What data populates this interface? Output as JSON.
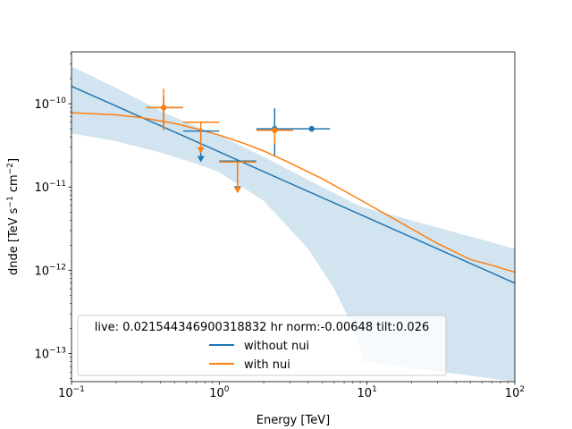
{
  "chart_data": {
    "type": "line",
    "xscale": "log",
    "yscale": "log",
    "xlabel": "Energy [TeV]",
    "ylabel_parts": {
      "prefix": "dnde [TeV s",
      "exp1": "−1",
      "mid": " cm",
      "exp2": "−2",
      "suffix": "]"
    },
    "xlim": [
      0.1,
      100
    ],
    "ylim": [
      4.6e-14,
      4.2e-10
    ],
    "x_ticks": [
      {
        "value": 0.1,
        "base": "10",
        "exp": "−1"
      },
      {
        "value": 1,
        "base": "10",
        "exp": "0"
      },
      {
        "value": 10,
        "base": "10",
        "exp": "1"
      },
      {
        "value": 100,
        "base": "10",
        "exp": "2"
      }
    ],
    "y_ticks": [
      {
        "value": 1e-13,
        "base": "10",
        "exp": "−13"
      },
      {
        "value": 1e-12,
        "base": "10",
        "exp": "−12"
      },
      {
        "value": 1e-11,
        "base": "10",
        "exp": "−11"
      },
      {
        "value": 1e-10,
        "base": "10",
        "exp": "−10"
      }
    ],
    "band": {
      "color": "#1f77b4",
      "opacity": 0.2,
      "x": [
        0.1,
        0.2,
        0.4,
        0.7,
        1.0,
        2.0,
        4.0,
        6.0,
        8.0,
        9.5,
        100
      ],
      "upper": [
        2.8e-10,
        1.55e-10,
        8.2e-11,
        5.3e-11,
        4.2e-11,
        2.3e-11,
        1.22e-11,
        8.4e-12,
        6.5e-12,
        5.7e-12,
        1.82e-12
      ],
      "lower": [
        4.4e-11,
        3.55e-11,
        2.6e-11,
        1.9e-11,
        1.5e-11,
        6.8e-12,
        1.8e-12,
        6e-13,
        2.1e-13,
        8e-14,
        4.6e-14
      ]
    },
    "series": [
      {
        "name": "without nui",
        "color": "#1f77b4",
        "line": {
          "x": [
            0.1,
            100
          ],
          "y": [
            1.62e-10,
            7e-13
          ]
        },
        "points": [
          {
            "x": 0.42,
            "y": 9e-11,
            "xlo": 0.32,
            "xhi": 0.57,
            "ylo": 5.2e-11,
            "yhi": 1.22e-10,
            "ul": false
          },
          {
            "x": 0.75,
            "y": 4.7e-11,
            "xlo": 0.57,
            "xhi": 1.0,
            "ul": true
          },
          {
            "x": 1.33,
            "y": 2.05e-11,
            "xlo": 1.0,
            "xhi": 1.78,
            "ul": true
          },
          {
            "x": 2.37,
            "y": 5e-11,
            "xlo": 1.78,
            "xhi": 3.16,
            "ylo": 2.4e-11,
            "yhi": 8.8e-11,
            "ul": false
          },
          {
            "x": 4.22,
            "y": 5e-11,
            "xlo": 3.16,
            "xhi": 5.62,
            "ylo": 5e-11,
            "yhi": 5e-11,
            "ul": false
          }
        ]
      },
      {
        "name": "with nui",
        "color": "#ff7f0e",
        "line": {
          "x": [
            0.1,
            0.2,
            0.3,
            0.5,
            0.7,
            1.0,
            1.5,
            2.0,
            3.0,
            5.0,
            7.0,
            10,
            15,
            20,
            30,
            50,
            70,
            100
          ],
          "y": [
            7.8e-11,
            7.35e-11,
            6.8e-11,
            5.8e-11,
            5e-11,
            4.2e-11,
            3.3e-11,
            2.7e-11,
            1.95e-11,
            1.25e-11,
            9e-12,
            6.3e-12,
            4.2e-12,
            3.15e-12,
            2.1e-12,
            1.35e-12,
            1.15e-12,
            9.5e-13
          ]
        },
        "points": [
          {
            "x": 0.42,
            "y": 9e-11,
            "xlo": 0.32,
            "xhi": 0.57,
            "ylo": 4.8e-11,
            "yhi": 1.52e-10,
            "ul": false
          },
          {
            "x": 0.75,
            "y": 6e-11,
            "xlo": 0.57,
            "xhi": 1.0,
            "ul": true
          },
          {
            "x": 1.33,
            "y": 2e-11,
            "xlo": 1.0,
            "xhi": 1.78,
            "ul": true
          },
          {
            "x": 2.37,
            "y": 4.8e-11,
            "xlo": 1.78,
            "xhi": 3.16,
            "ylo": 3.3e-11,
            "yhi": 5e-11,
            "ul": false
          }
        ]
      }
    ],
    "legend": {
      "placement": "lower-left",
      "title": "live: 0.021544346900318832 hr norm:-0.00648 tilt:0.026",
      "entries": [
        "without nui",
        "with nui"
      ]
    }
  }
}
